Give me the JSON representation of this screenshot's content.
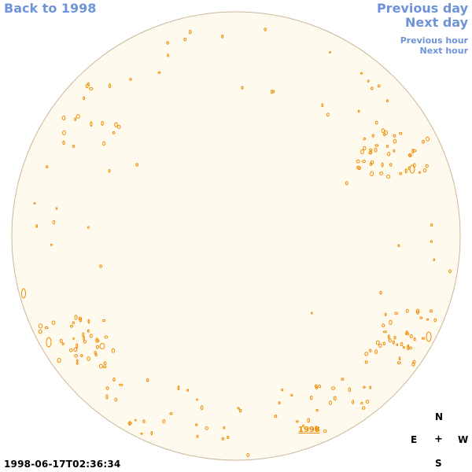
{
  "nav": {
    "back_label": "Back to 1998",
    "prev_day_label": "Previous day",
    "next_day_label": "Next day",
    "prev_hour_label": "Previous hour",
    "next_hour_label": "Next hour"
  },
  "image": {
    "year_label": "1998",
    "timestamp": "1998-06-17T02:36:34"
  },
  "compass": {
    "north": "N",
    "east": "E",
    "center": "+",
    "west": "W",
    "south": "S"
  },
  "colors": {
    "link": "#6f93d9",
    "disk_fill": "#fffaee",
    "disk_edge": "#c9b89a",
    "contour": "#f08a00"
  }
}
